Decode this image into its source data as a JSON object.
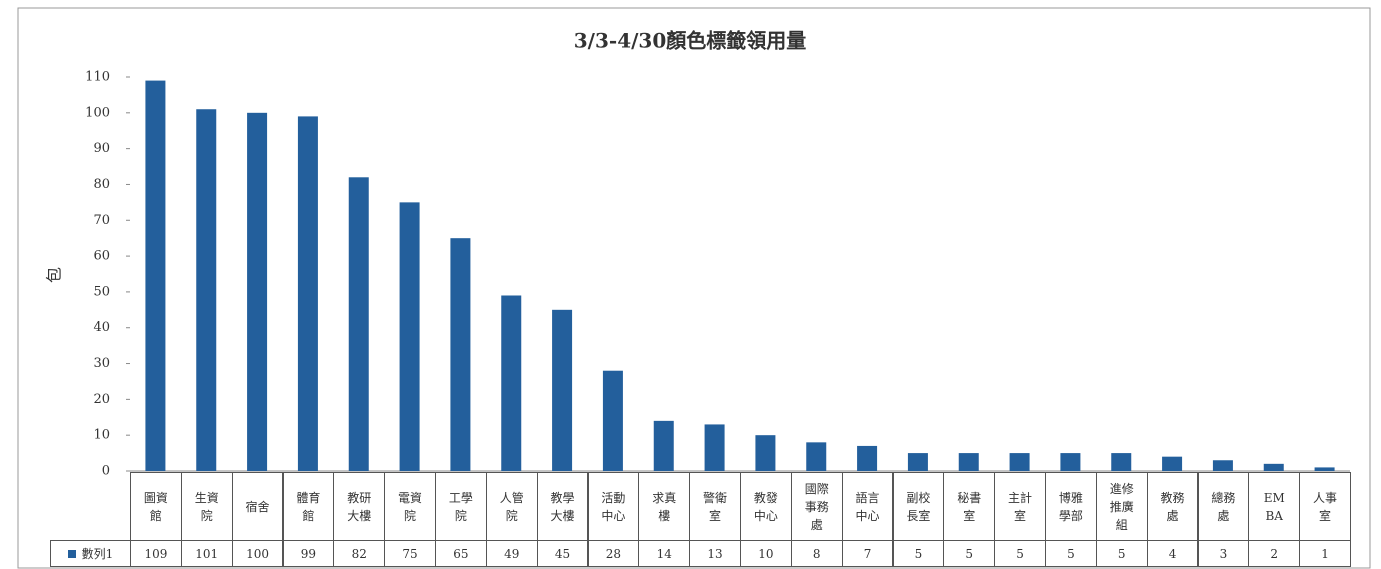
{
  "chart_data": {
    "type": "bar",
    "title": "3/3-4/30顏色標籤領用量",
    "y_label": "包",
    "categories": [
      "圖資館",
      "生資院",
      "宿舍",
      "體育館",
      "教研大樓",
      "電資院",
      "工學院",
      "人管院",
      "教學大樓",
      "活動中心",
      "求真樓",
      "警衛室",
      "教發中心",
      "國際事務處",
      "語言中心",
      "副校長室",
      "秘書室",
      "主計室",
      "博雅學部",
      "進修推廣組",
      "教務處",
      "總務處",
      "EMBA",
      "人事室"
    ],
    "series": [
      {
        "name": "數列1",
        "color": "#235f9c",
        "values": [
          109,
          101,
          100,
          99,
          82,
          75,
          65,
          49,
          45,
          28,
          14,
          13,
          10,
          8,
          7,
          5,
          5,
          5,
          5,
          5,
          4,
          3,
          2,
          1
        ]
      }
    ],
    "ylim": [
      0,
      110
    ],
    "yticks": [
      0,
      10,
      20,
      30,
      40,
      50,
      60,
      70,
      80,
      90,
      100,
      110
    ],
    "grid": false
  }
}
